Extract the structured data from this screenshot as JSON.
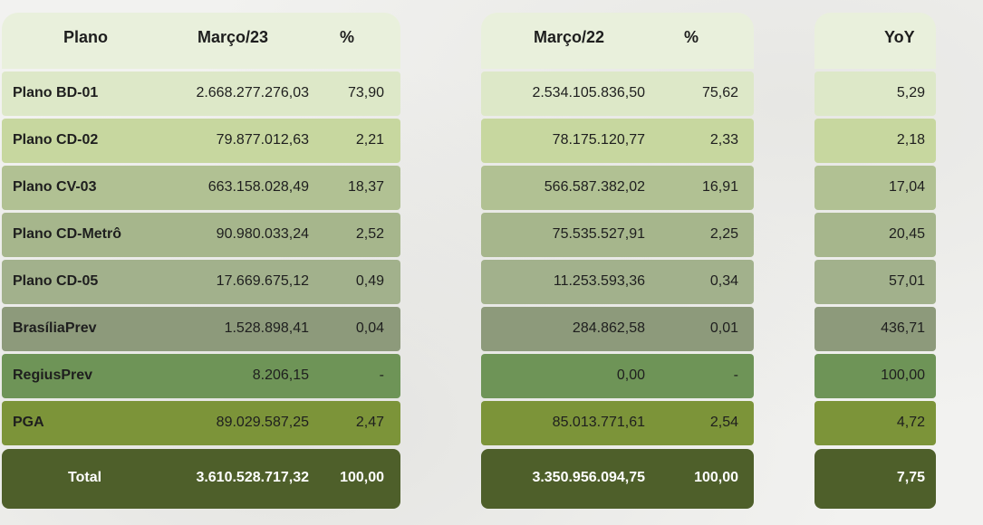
{
  "headers": {
    "plano": "Plano",
    "marco23": "Março/23",
    "pct23": "%",
    "marco22": "Março/22",
    "pct22": "%",
    "yoy": "YoY"
  },
  "rows": [
    {
      "name": "Plano BD-01",
      "v23": "2.668.277.276,03",
      "p23": "73,90",
      "v22": "2.534.105.836,50",
      "p22": "75,62",
      "yoy": "5,29"
    },
    {
      "name": "Plano CD-02",
      "v23": "79.877.012,63",
      "p23": "2,21",
      "v22": "78.175.120,77",
      "p22": "2,33",
      "yoy": "2,18"
    },
    {
      "name": "Plano CV-03",
      "v23": "663.158.028,49",
      "p23": "18,37",
      "v22": "566.587.382,02",
      "p22": "16,91",
      "yoy": "17,04"
    },
    {
      "name": "Plano CD-Metrô",
      "v23": "90.980.033,24",
      "p23": "2,52",
      "v22": "75.535.527,91",
      "p22": "2,25",
      "yoy": "20,45"
    },
    {
      "name": "Plano CD-05",
      "v23": "17.669.675,12",
      "p23": "0,49",
      "v22": "11.253.593,36",
      "p22": "0,34",
      "yoy": "57,01"
    },
    {
      "name": "BrasíliaPrev",
      "v23": "1.528.898,41",
      "p23": "0,04",
      "v22": "284.862,58",
      "p22": "0,01",
      "yoy": "436,71"
    },
    {
      "name": "RegiusPrev",
      "v23": "8.206,15",
      "p23": "-",
      "v22": "0,00",
      "p22": "-",
      "yoy": "100,00"
    },
    {
      "name": "PGA",
      "v23": "89.029.587,25",
      "p23": "2,47",
      "v22": "85.013.771,61",
      "p22": "2,54",
      "yoy": "4,72"
    }
  ],
  "total": {
    "name": "Total",
    "v23": "3.610.528.717,32",
    "p23": "100,00",
    "v22": "3.350.956.094,75",
    "p22": "100,00",
    "yoy": "7,75"
  },
  "row_colors": [
    "#dde8c8",
    "#c7d79f",
    "#b1c193",
    "#a6b68c",
    "#a2b18c",
    "#8d9a7b",
    "#6e9457",
    "#7c9439"
  ],
  "total_color": "#4e5f2a",
  "header_color": "#e9f0dc"
}
